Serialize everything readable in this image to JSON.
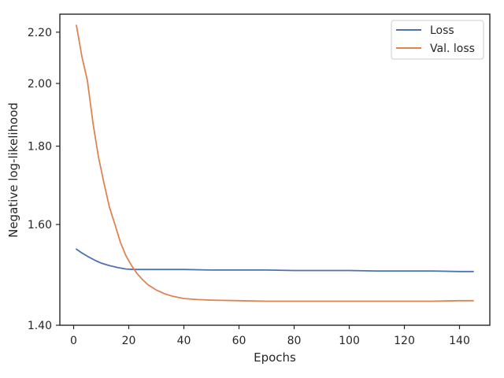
{
  "chart_data": {
    "type": "line",
    "xlabel": "Epochs",
    "ylabel": "Negative log-likelihood",
    "xlim": [
      -5,
      151
    ],
    "xticks": [
      0,
      20,
      40,
      60,
      80,
      100,
      120,
      140
    ],
    "xtick_labels": [
      "0",
      "20",
      "40",
      "60",
      "80",
      "100",
      "120",
      "140"
    ],
    "y_scale": "reciprocal",
    "ylim": [
      1.4,
      2.28
    ],
    "yticks": [
      1.4,
      1.6,
      1.8,
      2.0,
      2.2
    ],
    "ytick_labels": [
      "1.40",
      "1.60",
      "1.80",
      "2.00",
      "2.20"
    ],
    "grid": false,
    "legend_position": "top-right",
    "series": [
      {
        "name": "Loss",
        "color": "#4c72b0",
        "x": [
          1,
          3,
          5,
          8,
          10,
          13,
          16,
          19,
          22,
          25,
          30,
          35,
          40,
          50,
          60,
          70,
          80,
          90,
          100,
          110,
          120,
          130,
          140,
          145
        ],
        "y": [
          1.546,
          1.538,
          1.531,
          1.522,
          1.517,
          1.512,
          1.508,
          1.505,
          1.504,
          1.504,
          1.504,
          1.504,
          1.504,
          1.503,
          1.503,
          1.503,
          1.502,
          1.502,
          1.502,
          1.501,
          1.501,
          1.501,
          1.5,
          1.5
        ]
      },
      {
        "name": "Val. loss",
        "color": "#dd8452",
        "x": [
          1,
          3,
          5,
          7,
          9,
          11,
          13,
          15,
          17,
          19,
          21,
          23,
          25,
          27,
          30,
          33,
          36,
          40,
          45,
          50,
          60,
          70,
          80,
          90,
          100,
          110,
          120,
          130,
          140,
          145
        ],
        "y": [
          2.23,
          2.1,
          2.01,
          1.87,
          1.77,
          1.7,
          1.64,
          1.6,
          1.56,
          1.532,
          1.512,
          1.496,
          1.484,
          1.474,
          1.464,
          1.457,
          1.452,
          1.448,
          1.446,
          1.445,
          1.444,
          1.443,
          1.443,
          1.443,
          1.443,
          1.443,
          1.443,
          1.443,
          1.444,
          1.444
        ]
      }
    ]
  }
}
